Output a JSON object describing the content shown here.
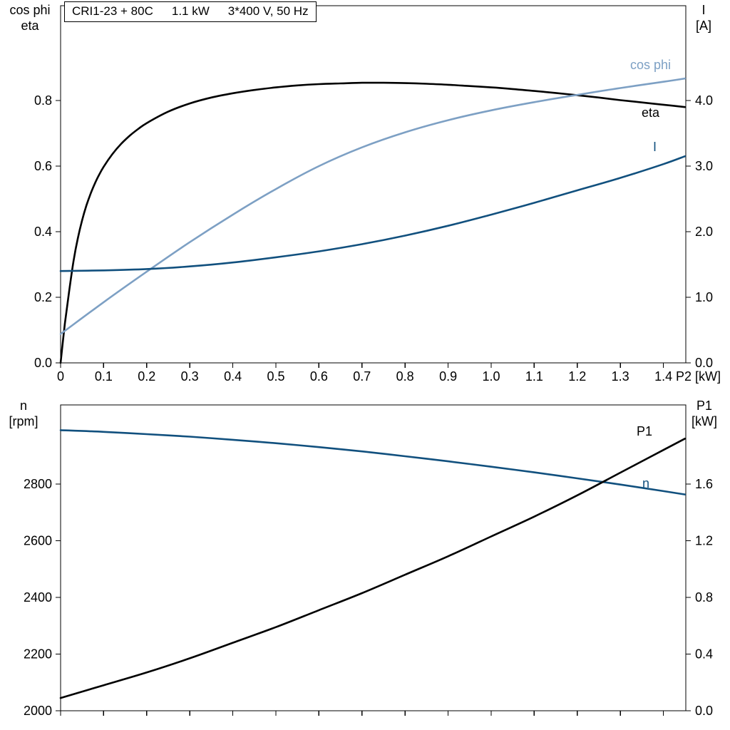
{
  "chart_data": [
    {
      "type": "line",
      "title": "CRI1-23 + 80C  1.1 kW  3*400 V, 50 Hz",
      "title_parts": [
        "CRI1-23 + 80C",
        "1.1 kW",
        "3*400 V, 50 Hz"
      ],
      "x_axis": {
        "label": "P2 [kW]",
        "range": [
          0,
          1.452
        ],
        "tick_values": [
          0,
          0.1,
          0.2,
          0.3,
          0.4,
          0.5,
          0.6,
          0.7,
          0.8,
          0.9,
          1.0,
          1.1,
          1.2,
          1.3,
          1.4
        ],
        "tick_labels": [
          "0",
          "0.1",
          "0.2",
          "0.3",
          "0.4",
          "0.5",
          "0.6",
          "0.7",
          "0.8",
          "0.9",
          "1.0",
          "1.1",
          "1.2",
          "1.3",
          "1.4"
        ]
      },
      "left_axis": {
        "label_lines": [
          "cos phi",
          "eta"
        ],
        "range": [
          0,
          1.089
        ],
        "tick_values": [
          0,
          0.2,
          0.4,
          0.6,
          0.8
        ],
        "tick_labels": [
          "0.0",
          "0.2",
          "0.4",
          "0.6",
          "0.8"
        ]
      },
      "right_axis": {
        "label_lines": [
          "I",
          "[A]"
        ],
        "range": [
          0,
          5.445
        ],
        "tick_values": [
          0,
          1,
          2,
          3,
          4
        ],
        "tick_labels": [
          "0.0",
          "1.0",
          "2.0",
          "3.0",
          "4.0"
        ]
      },
      "series": [
        {
          "name": "eta",
          "axis": "left",
          "color": "#000000",
          "x": [
            0,
            0.01,
            0.02,
            0.03,
            0.04,
            0.05,
            0.06,
            0.07,
            0.08,
            0.09,
            0.1,
            0.12,
            0.14,
            0.16,
            0.18,
            0.2,
            0.25,
            0.3,
            0.35,
            0.4,
            0.45,
            0.5,
            0.55,
            0.6,
            0.65,
            0.7,
            0.75,
            0.8,
            0.85,
            0.9,
            0.95,
            1.0,
            1.05,
            1.1,
            1.15,
            1.2,
            1.25,
            1.3,
            1.35,
            1.4,
            1.45
          ],
          "y": [
            0,
            0.12,
            0.22,
            0.31,
            0.38,
            0.435,
            0.48,
            0.517,
            0.548,
            0.575,
            0.598,
            0.636,
            0.667,
            0.692,
            0.713,
            0.731,
            0.766,
            0.791,
            0.809,
            0.822,
            0.832,
            0.84,
            0.846,
            0.85,
            0.852,
            0.854,
            0.854,
            0.853,
            0.851,
            0.848,
            0.844,
            0.84,
            0.835,
            0.829,
            0.823,
            0.816,
            0.809,
            0.801,
            0.794,
            0.787,
            0.78
          ]
        },
        {
          "name": "cos phi",
          "axis": "left",
          "color": "#7da0c4",
          "x": [
            0,
            0.1,
            0.2,
            0.3,
            0.4,
            0.5,
            0.6,
            0.7,
            0.8,
            0.9,
            1.0,
            1.1,
            1.2,
            1.3,
            1.4,
            1.45
          ],
          "y": [
            0.088,
            0.185,
            0.278,
            0.368,
            0.452,
            0.53,
            0.6,
            0.657,
            0.703,
            0.74,
            0.77,
            0.795,
            0.817,
            0.838,
            0.857,
            0.867
          ]
        },
        {
          "name": "I",
          "axis": "right",
          "color": "#11507e",
          "x": [
            0,
            0.1,
            0.2,
            0.3,
            0.4,
            0.5,
            0.6,
            0.7,
            0.8,
            0.9,
            1.0,
            1.1,
            1.2,
            1.3,
            1.4,
            1.45
          ],
          "y": [
            1.4,
            1.41,
            1.43,
            1.47,
            1.53,
            1.61,
            1.7,
            1.81,
            1.94,
            2.09,
            2.26,
            2.44,
            2.63,
            2.82,
            3.03,
            3.15
          ]
        }
      ]
    },
    {
      "type": "line",
      "title": "",
      "x_axis": {
        "label": "",
        "range": [
          0,
          1.452
        ],
        "tick_values": [
          0,
          0.1,
          0.2,
          0.3,
          0.4,
          0.5,
          0.6,
          0.7,
          0.8,
          0.9,
          1.0,
          1.1,
          1.2,
          1.3,
          1.4
        ],
        "tick_labels": []
      },
      "left_axis": {
        "label_lines": [
          "n",
          "[rpm]"
        ],
        "range": [
          2000,
          3079
        ],
        "tick_values": [
          2000,
          2200,
          2400,
          2600,
          2800
        ],
        "tick_labels": [
          "2000",
          "2200",
          "2400",
          "2600",
          "2800"
        ]
      },
      "right_axis": {
        "label_lines": [
          "P1",
          "[kW]"
        ],
        "range": [
          0,
          2.158
        ],
        "tick_values": [
          0,
          0.4,
          0.8,
          1.2,
          1.6
        ],
        "tick_labels": [
          "0.0",
          "0.4",
          "0.8",
          "1.2",
          "1.6"
        ]
      },
      "series": [
        {
          "name": "n",
          "axis": "left",
          "color": "#11507e",
          "x": [
            0,
            0.1,
            0.2,
            0.3,
            0.4,
            0.5,
            0.6,
            0.7,
            0.8,
            0.9,
            1.0,
            1.1,
            1.2,
            1.3,
            1.4,
            1.45
          ],
          "y": [
            2990,
            2984,
            2976,
            2967,
            2956,
            2944,
            2930,
            2915,
            2898,
            2880,
            2861,
            2841,
            2820,
            2798,
            2775,
            2763
          ]
        },
        {
          "name": "P1",
          "axis": "right",
          "color": "#000000",
          "x": [
            0,
            0.1,
            0.2,
            0.3,
            0.4,
            0.5,
            0.6,
            0.7,
            0.8,
            0.9,
            1.0,
            1.1,
            1.2,
            1.3,
            1.4,
            1.45
          ],
          "y": [
            0.09,
            0.18,
            0.27,
            0.37,
            0.48,
            0.59,
            0.71,
            0.83,
            0.96,
            1.09,
            1.23,
            1.37,
            1.52,
            1.68,
            1.84,
            1.92
          ]
        }
      ]
    }
  ]
}
